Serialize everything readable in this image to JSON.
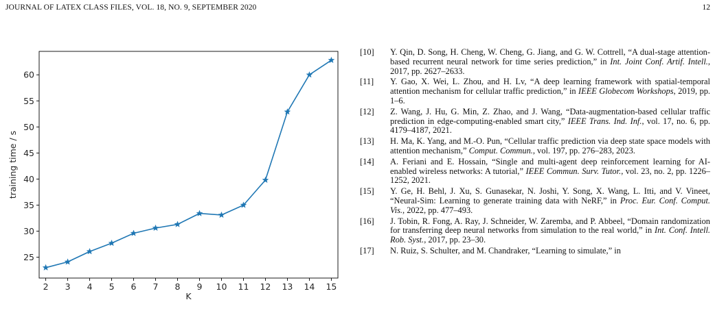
{
  "header": {
    "journal": "JOURNAL OF LATEX CLASS FILES, VOL. 18, NO. 9, SEPTEMBER 2020",
    "page_number": "12"
  },
  "chart_data": {
    "type": "line",
    "x": [
      2,
      3,
      4,
      5,
      6,
      7,
      8,
      9,
      10,
      11,
      12,
      13,
      14,
      15
    ],
    "series": [
      {
        "values": [
          23.0,
          24.1,
          26.1,
          27.7,
          29.6,
          30.6,
          31.3,
          33.4,
          33.1,
          35.0,
          39.8,
          52.9,
          60.0,
          62.8
        ]
      }
    ],
    "xlabel": "K",
    "ylabel": "training time / s",
    "xlim": [
      1.7,
      15.3
    ],
    "ylim": [
      21.0,
      64.5
    ],
    "xticks": [
      2,
      3,
      4,
      5,
      6,
      7,
      8,
      9,
      10,
      11,
      12,
      13,
      14,
      15
    ],
    "yticks": [
      25,
      30,
      35,
      40,
      45,
      50,
      55,
      60
    ],
    "color": "#1f77b4",
    "marker": "star",
    "grid": false
  },
  "references": [
    {
      "num": "[10]",
      "parts": [
        {
          "t": "Y. Qin, D. Song, H. Cheng, W. Cheng, G. Jiang, and G. W. Cottrell, “A dual-stage attention-based recurrent neural network for time series prediction,” in ",
          "i": false
        },
        {
          "t": "Int. Joint Conf. Artif. Intell.",
          "i": true
        },
        {
          "t": ", 2017, pp. 2627–2633.",
          "i": false
        }
      ]
    },
    {
      "num": "[11]",
      "parts": [
        {
          "t": "Y. Gao, X. Wei, L. Zhou, and H. Lv, “A deep learning framework with spatial-temporal attention mechanism for cellular traffic prediction,” in ",
          "i": false
        },
        {
          "t": "IEEE Globecom Workshops",
          "i": true
        },
        {
          "t": ", 2019, pp. 1–6.",
          "i": false
        }
      ]
    },
    {
      "num": "[12]",
      "parts": [
        {
          "t": "Z. Wang, J. Hu, G. Min, Z. Zhao, and J. Wang, “Data-augmentation-based cellular traffic prediction in edge-computing-enabled smart city,” ",
          "i": false
        },
        {
          "t": "IEEE Trans. Ind. Inf.",
          "i": true
        },
        {
          "t": ", vol. 17, no. 6, pp. 4179–4187, 2021.",
          "i": false
        }
      ]
    },
    {
      "num": "[13]",
      "parts": [
        {
          "t": "H. Ma, K. Yang, and M.-O. Pun, “Cellular traffic prediction via deep state space models with attention mechanism,” ",
          "i": false
        },
        {
          "t": "Comput. Commun.",
          "i": true
        },
        {
          "t": ", vol. 197, pp. 276–283, 2023.",
          "i": false
        }
      ]
    },
    {
      "num": "[14]",
      "parts": [
        {
          "t": "A. Feriani and E. Hossain, “Single and multi-agent deep reinforcement learning for AI-enabled wireless networks: A tutorial,” ",
          "i": false
        },
        {
          "t": "IEEE Commun. Surv. Tutor.",
          "i": true
        },
        {
          "t": ", vol. 23, no. 2, pp. 1226–1252, 2021.",
          "i": false
        }
      ]
    },
    {
      "num": "[15]",
      "parts": [
        {
          "t": "Y. Ge, H. Behl, J. Xu, S. Gunasekar, N. Joshi, Y. Song, X. Wang, L. Itti, and V. Vineet, “Neural-Sim: Learning to generate training data with NeRF,” in ",
          "i": false
        },
        {
          "t": "Proc. Eur. Conf. Comput. Vis.",
          "i": true
        },
        {
          "t": ", 2022, pp. 477–493.",
          "i": false
        }
      ]
    },
    {
      "num": "[16]",
      "parts": [
        {
          "t": "J. Tobin, R. Fong, A. Ray, J. Schneider, W. Zaremba, and P. Abbeel, “Domain randomization for transferring deep neural networks from simulation to the real world,” in ",
          "i": false
        },
        {
          "t": "Int. Conf. Intell. Rob. Syst.",
          "i": true
        },
        {
          "t": ", 2017, pp. 23–30.",
          "i": false
        }
      ]
    },
    {
      "num": "[17]",
      "parts": [
        {
          "t": "N. Ruiz, S. Schulter, and M. Chandraker, “Learning to simulate,” in",
          "i": false
        }
      ]
    }
  ]
}
